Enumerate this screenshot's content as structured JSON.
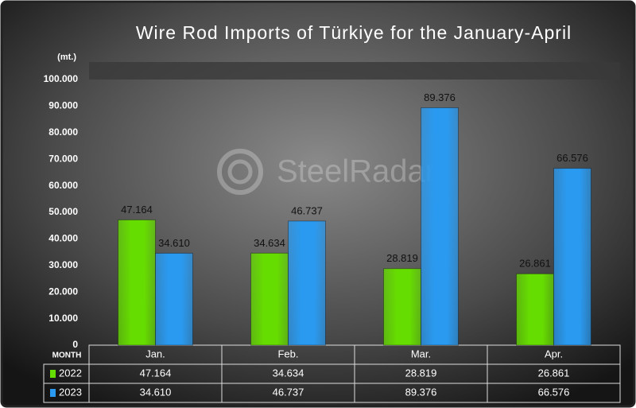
{
  "chart_data": {
    "type": "bar",
    "title": "Wire Rod Imports of Türkiye for the January-April",
    "unit_label": "(mt.)",
    "table_header": "MONTH",
    "watermark": "SteelRadar",
    "categories": [
      "Jan.",
      "Feb.",
      "Mar.",
      "Apr."
    ],
    "series": [
      {
        "name": "2022",
        "color": "#66dd00",
        "values": [
          47164,
          34634,
          28819,
          26861
        ],
        "value_labels": [
          "47.164",
          "34.634",
          "28.819",
          "26.861"
        ]
      },
      {
        "name": "2023",
        "color": "#2a9af0",
        "values": [
          34610,
          46737,
          89376,
          66576
        ],
        "value_labels": [
          "34.610",
          "46.737",
          "89.376",
          "66.576"
        ]
      }
    ],
    "ylim": [
      0,
      100000
    ],
    "yticks": [
      0,
      {
        "value": 10000,
        "label": "10.000"
      },
      {
        "value": 20000,
        "label": "20.000"
      },
      {
        "value": 30000,
        "label": "30.000"
      },
      {
        "value": 40000,
        "label": "40.000"
      },
      {
        "value": 50000,
        "label": "50.000"
      },
      {
        "value": 60000,
        "label": "60.000"
      },
      {
        "value": 70000,
        "label": "70.000"
      },
      {
        "value": 80000,
        "label": "80.000"
      },
      {
        "value": 90000,
        "label": "90.000"
      },
      {
        "value": 100000,
        "label": "100.000"
      }
    ]
  }
}
